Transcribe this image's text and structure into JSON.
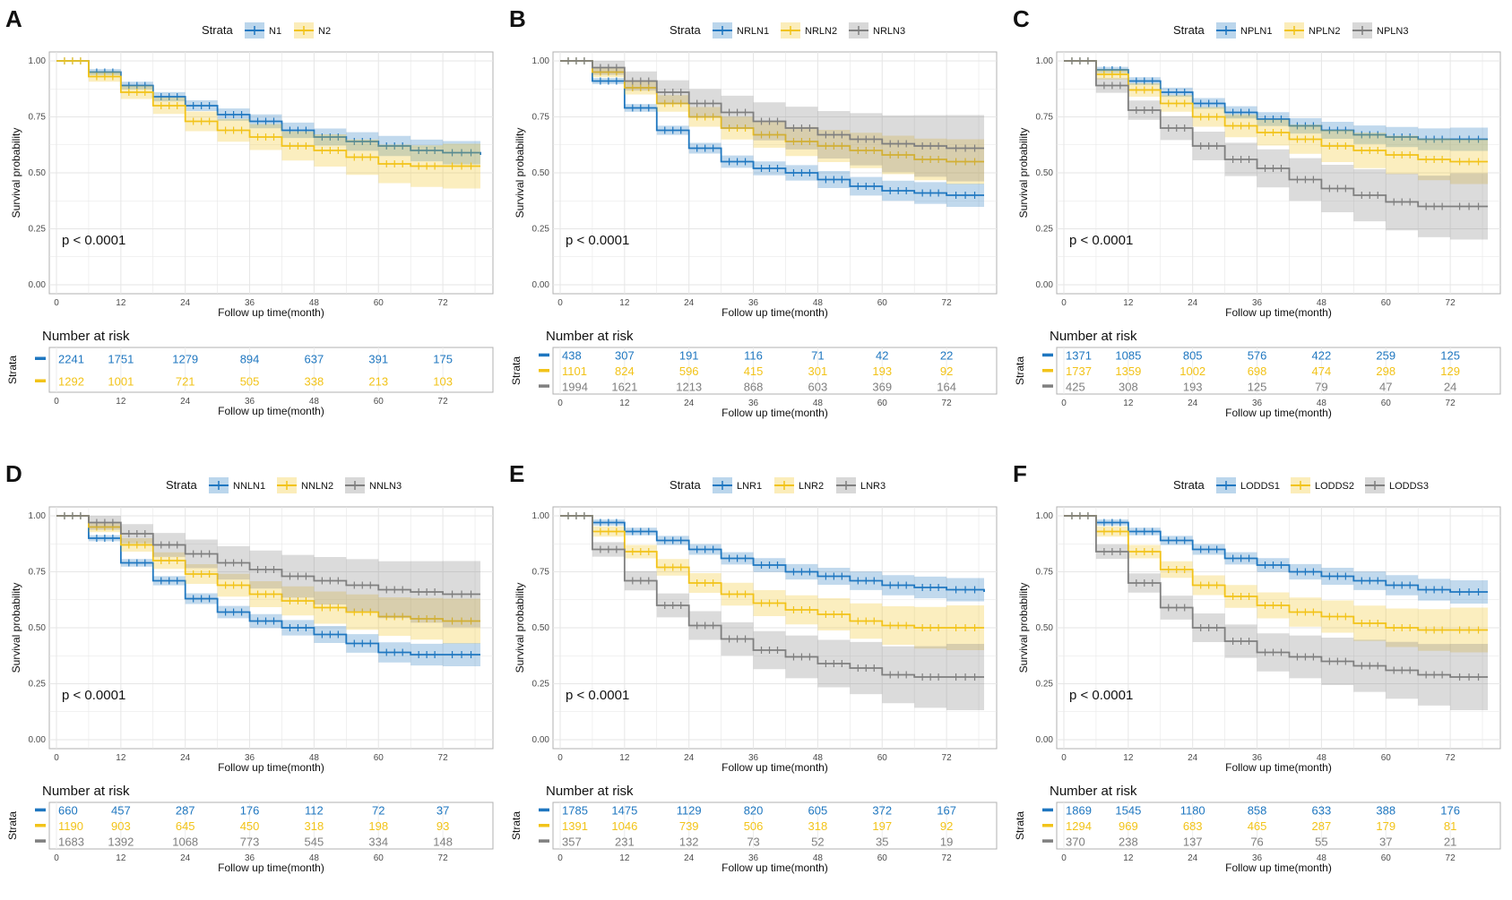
{
  "chart_data": [
    {
      "type": "line",
      "panel": "A",
      "legend_title": "Strata",
      "series": [
        {
          "name": "N1",
          "color": "#1F77C0",
          "x": [
            0,
            6,
            12,
            18,
            24,
            30,
            36,
            42,
            48,
            54,
            60,
            66,
            72,
            79
          ],
          "y": [
            1.0,
            0.95,
            0.89,
            0.84,
            0.8,
            0.76,
            0.73,
            0.69,
            0.66,
            0.64,
            0.62,
            0.6,
            0.59,
            0.58
          ]
        },
        {
          "name": "N2",
          "color": "#F2C319",
          "x": [
            0,
            6,
            12,
            18,
            24,
            30,
            36,
            42,
            48,
            54,
            60,
            66,
            72,
            79
          ],
          "y": [
            1.0,
            0.93,
            0.86,
            0.8,
            0.73,
            0.69,
            0.66,
            0.62,
            0.6,
            0.57,
            0.54,
            0.53,
            0.53,
            0.53
          ]
        }
      ],
      "p_value": "p < 0.0001",
      "xlabel": "Follow up time(month)",
      "ylabel": "Survival probability",
      "xticks": [
        "0",
        "12",
        "24",
        "36",
        "48",
        "60",
        "72"
      ],
      "yticks": [
        "0.00",
        "0.25",
        "0.50",
        "0.75",
        "1.00"
      ],
      "xlim": [
        0,
        80
      ],
      "ylim": [
        0,
        1
      ],
      "risk_title": "Number at risk",
      "risk_ylabel": "Strata",
      "risk_table": [
        [
          "2241",
          "1751",
          "1279",
          "894",
          "637",
          "391",
          "175"
        ],
        [
          "1292",
          "1001",
          "721",
          "505",
          "338",
          "213",
          "103"
        ]
      ]
    },
    {
      "type": "line",
      "panel": "B",
      "legend_title": "Strata",
      "series": [
        {
          "name": "NRLN1",
          "color": "#1F77C0",
          "x": [
            0,
            6,
            12,
            18,
            24,
            30,
            36,
            42,
            48,
            54,
            60,
            66,
            72,
            79
          ],
          "y": [
            1.0,
            0.91,
            0.79,
            0.69,
            0.61,
            0.55,
            0.52,
            0.5,
            0.47,
            0.44,
            0.42,
            0.41,
            0.4,
            0.4
          ]
        },
        {
          "name": "NRLN2",
          "color": "#F2C319",
          "x": [
            0,
            6,
            12,
            18,
            24,
            30,
            36,
            42,
            48,
            54,
            60,
            66,
            72,
            79
          ],
          "y": [
            1.0,
            0.95,
            0.88,
            0.81,
            0.75,
            0.7,
            0.67,
            0.64,
            0.62,
            0.6,
            0.58,
            0.56,
            0.55,
            0.55
          ]
        },
        {
          "name": "NRLN3",
          "color": "#7F7F7F",
          "x": [
            0,
            6,
            12,
            18,
            24,
            30,
            36,
            42,
            48,
            54,
            60,
            66,
            72,
            79
          ],
          "y": [
            1.0,
            0.97,
            0.91,
            0.86,
            0.81,
            0.77,
            0.73,
            0.7,
            0.67,
            0.65,
            0.63,
            0.62,
            0.61,
            0.61
          ]
        }
      ],
      "p_value": "p < 0.0001",
      "xlabel": "Follow up time(month)",
      "ylabel": "Survival probability",
      "xticks": [
        "0",
        "12",
        "24",
        "36",
        "48",
        "60",
        "72"
      ],
      "yticks": [
        "0.00",
        "0.25",
        "0.50",
        "0.75",
        "1.00"
      ],
      "xlim": [
        0,
        80
      ],
      "ylim": [
        0,
        1
      ],
      "risk_title": "Number at risk",
      "risk_ylabel": "Strata",
      "risk_table": [
        [
          "438",
          "307",
          "191",
          "116",
          "71",
          "42",
          "22"
        ],
        [
          "1101",
          "824",
          "596",
          "415",
          "301",
          "193",
          "92"
        ],
        [
          "1994",
          "1621",
          "1213",
          "868",
          "603",
          "369",
          "164"
        ]
      ]
    },
    {
      "type": "line",
      "panel": "C",
      "legend_title": "Strata",
      "series": [
        {
          "name": "NPLN1",
          "color": "#1F77C0",
          "x": [
            0,
            6,
            12,
            18,
            24,
            30,
            36,
            42,
            48,
            54,
            60,
            66,
            72,
            79
          ],
          "y": [
            1.0,
            0.96,
            0.91,
            0.86,
            0.81,
            0.77,
            0.74,
            0.71,
            0.69,
            0.67,
            0.66,
            0.65,
            0.65,
            0.65
          ]
        },
        {
          "name": "NPLN2",
          "color": "#F2C319",
          "x": [
            0,
            6,
            12,
            18,
            24,
            30,
            36,
            42,
            48,
            54,
            60,
            66,
            72,
            79
          ],
          "y": [
            1.0,
            0.94,
            0.87,
            0.81,
            0.75,
            0.71,
            0.68,
            0.65,
            0.62,
            0.6,
            0.58,
            0.56,
            0.55,
            0.55
          ]
        },
        {
          "name": "NPLN3",
          "color": "#7F7F7F",
          "x": [
            0,
            6,
            12,
            18,
            24,
            30,
            36,
            42,
            48,
            54,
            60,
            66,
            72,
            79
          ],
          "y": [
            1.0,
            0.89,
            0.78,
            0.7,
            0.62,
            0.56,
            0.52,
            0.47,
            0.43,
            0.4,
            0.37,
            0.35,
            0.35,
            0.35
          ]
        }
      ],
      "p_value": "p < 0.0001",
      "xlabel": "Follow up time(month)",
      "ylabel": "Survival probability",
      "xticks": [
        "0",
        "12",
        "24",
        "36",
        "48",
        "60",
        "72"
      ],
      "yticks": [
        "0.00",
        "0.25",
        "0.50",
        "0.75",
        "1.00"
      ],
      "xlim": [
        0,
        80
      ],
      "ylim": [
        0,
        1
      ],
      "risk_title": "Number at risk",
      "risk_ylabel": "Strata",
      "risk_table": [
        [
          "1371",
          "1085",
          "805",
          "576",
          "422",
          "259",
          "125"
        ],
        [
          "1737",
          "1359",
          "1002",
          "698",
          "474",
          "298",
          "129"
        ],
        [
          "425",
          "308",
          "193",
          "125",
          "79",
          "47",
          "24"
        ]
      ]
    },
    {
      "type": "line",
      "panel": "D",
      "legend_title": "Strata",
      "series": [
        {
          "name": "NNLN1",
          "color": "#1F77C0",
          "x": [
            0,
            6,
            12,
            18,
            24,
            30,
            36,
            42,
            48,
            54,
            60,
            66,
            72,
            79
          ],
          "y": [
            1.0,
            0.9,
            0.79,
            0.71,
            0.63,
            0.57,
            0.53,
            0.5,
            0.47,
            0.43,
            0.39,
            0.38,
            0.38,
            0.38
          ]
        },
        {
          "name": "NNLN2",
          "color": "#F2C319",
          "x": [
            0,
            6,
            12,
            18,
            24,
            30,
            36,
            42,
            48,
            54,
            60,
            66,
            72,
            79
          ],
          "y": [
            1.0,
            0.95,
            0.87,
            0.8,
            0.74,
            0.69,
            0.65,
            0.62,
            0.59,
            0.57,
            0.55,
            0.54,
            0.53,
            0.53
          ]
        },
        {
          "name": "NNLN3",
          "color": "#7F7F7F",
          "x": [
            0,
            6,
            12,
            18,
            24,
            30,
            36,
            42,
            48,
            54,
            60,
            66,
            72,
            79
          ],
          "y": [
            1.0,
            0.97,
            0.92,
            0.87,
            0.83,
            0.79,
            0.76,
            0.73,
            0.71,
            0.69,
            0.67,
            0.66,
            0.65,
            0.65
          ]
        }
      ],
      "p_value": "p < 0.0001",
      "xlabel": "Follow up time(month)",
      "ylabel": "Survival probability",
      "xticks": [
        "0",
        "12",
        "24",
        "36",
        "48",
        "60",
        "72"
      ],
      "yticks": [
        "0.00",
        "0.25",
        "0.50",
        "0.75",
        "1.00"
      ],
      "xlim": [
        0,
        80
      ],
      "ylim": [
        0,
        1
      ],
      "risk_title": "Number at risk",
      "risk_ylabel": "Strata",
      "risk_table": [
        [
          "660",
          "457",
          "287",
          "176",
          "112",
          "72",
          "37"
        ],
        [
          "1190",
          "903",
          "645",
          "450",
          "318",
          "198",
          "93"
        ],
        [
          "1683",
          "1392",
          "1068",
          "773",
          "545",
          "334",
          "148"
        ]
      ]
    },
    {
      "type": "line",
      "panel": "E",
      "legend_title": "Strata",
      "series": [
        {
          "name": "LNR1",
          "color": "#1F77C0",
          "x": [
            0,
            6,
            12,
            18,
            24,
            30,
            36,
            42,
            48,
            54,
            60,
            66,
            72,
            79
          ],
          "y": [
            1.0,
            0.97,
            0.93,
            0.89,
            0.85,
            0.81,
            0.78,
            0.75,
            0.73,
            0.71,
            0.69,
            0.68,
            0.67,
            0.66
          ]
        },
        {
          "name": "LNR2",
          "color": "#F2C319",
          "x": [
            0,
            6,
            12,
            18,
            24,
            30,
            36,
            42,
            48,
            54,
            60,
            66,
            72,
            79
          ],
          "y": [
            1.0,
            0.93,
            0.84,
            0.77,
            0.7,
            0.65,
            0.61,
            0.58,
            0.56,
            0.53,
            0.51,
            0.5,
            0.5,
            0.5
          ]
        },
        {
          "name": "LNR3",
          "color": "#7F7F7F",
          "x": [
            0,
            6,
            12,
            18,
            24,
            30,
            36,
            42,
            48,
            54,
            60,
            66,
            72,
            79
          ],
          "y": [
            1.0,
            0.85,
            0.71,
            0.6,
            0.51,
            0.45,
            0.4,
            0.37,
            0.34,
            0.32,
            0.29,
            0.28,
            0.28,
            0.28
          ]
        }
      ],
      "p_value": "p < 0.0001",
      "xlabel": "Follow up time(month)",
      "ylabel": "Survival probability",
      "xticks": [
        "0",
        "12",
        "24",
        "36",
        "48",
        "60",
        "72"
      ],
      "yticks": [
        "0.00",
        "0.25",
        "0.50",
        "0.75",
        "1.00"
      ],
      "xlim": [
        0,
        80
      ],
      "ylim": [
        0,
        1
      ],
      "risk_title": "Number at risk",
      "risk_ylabel": "Strata",
      "risk_table": [
        [
          "1785",
          "1475",
          "1129",
          "820",
          "605",
          "372",
          "167"
        ],
        [
          "1391",
          "1046",
          "739",
          "506",
          "318",
          "197",
          "92"
        ],
        [
          "357",
          "231",
          "132",
          "73",
          "52",
          "35",
          "19"
        ]
      ]
    },
    {
      "type": "line",
      "panel": "F",
      "legend_title": "Strata",
      "series": [
        {
          "name": "LODDS1",
          "color": "#1F77C0",
          "x": [
            0,
            6,
            12,
            18,
            24,
            30,
            36,
            42,
            48,
            54,
            60,
            66,
            72,
            79
          ],
          "y": [
            1.0,
            0.97,
            0.93,
            0.89,
            0.85,
            0.81,
            0.78,
            0.75,
            0.73,
            0.71,
            0.69,
            0.67,
            0.66,
            0.66
          ]
        },
        {
          "name": "LODDS2",
          "color": "#F2C319",
          "x": [
            0,
            6,
            12,
            18,
            24,
            30,
            36,
            42,
            48,
            54,
            60,
            66,
            72,
            79
          ],
          "y": [
            1.0,
            0.93,
            0.84,
            0.76,
            0.69,
            0.64,
            0.6,
            0.57,
            0.55,
            0.52,
            0.5,
            0.49,
            0.49,
            0.49
          ]
        },
        {
          "name": "LODDS3",
          "color": "#7F7F7F",
          "x": [
            0,
            6,
            12,
            18,
            24,
            30,
            36,
            42,
            48,
            54,
            60,
            66,
            72,
            79
          ],
          "y": [
            1.0,
            0.84,
            0.7,
            0.59,
            0.5,
            0.44,
            0.39,
            0.37,
            0.35,
            0.33,
            0.31,
            0.29,
            0.28,
            0.28
          ]
        }
      ],
      "p_value": "p < 0.0001",
      "xlabel": "Follow up time(month)",
      "ylabel": "Survival probability",
      "xticks": [
        "0",
        "12",
        "24",
        "36",
        "48",
        "60",
        "72"
      ],
      "yticks": [
        "0.00",
        "0.25",
        "0.50",
        "0.75",
        "1.00"
      ],
      "xlim": [
        0,
        80
      ],
      "ylim": [
        0,
        1
      ],
      "risk_title": "Number at risk",
      "risk_ylabel": "Strata",
      "risk_table": [
        [
          "1869",
          "1545",
          "1180",
          "858",
          "633",
          "388",
          "176"
        ],
        [
          "1294",
          "969",
          "683",
          "465",
          "287",
          "179",
          "81"
        ],
        [
          "370",
          "238",
          "137",
          "76",
          "55",
          "37",
          "21"
        ]
      ]
    }
  ]
}
